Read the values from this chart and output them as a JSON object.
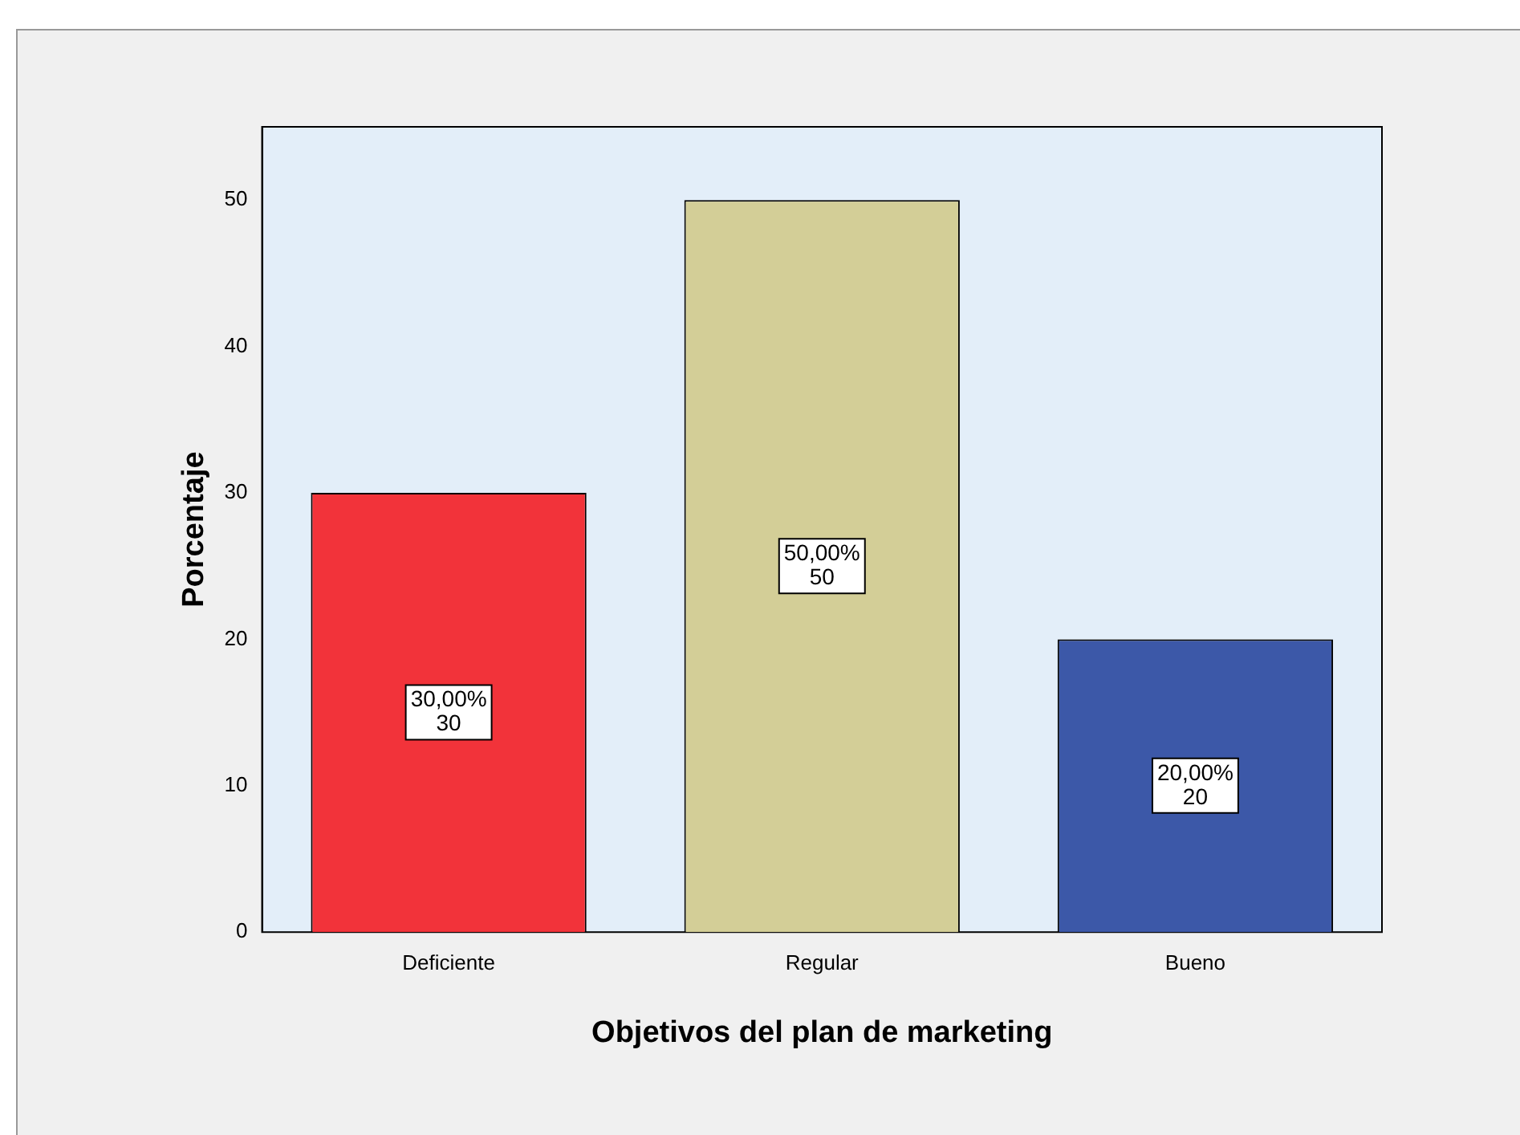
{
  "chart_data": {
    "type": "bar",
    "xlabel": "Objetivos del plan de marketing",
    "ylabel": "Porcentaje",
    "categories": [
      "Deficiente",
      "Regular",
      "Bueno"
    ],
    "values": [
      30,
      50,
      20
    ],
    "colors": [
      "#f2333a",
      "#d3ce97",
      "#3c58a8"
    ],
    "value_labels": [
      "30,00%\n30",
      "50,00%\n50",
      "20,00%\n20"
    ],
    "ylim": [
      0,
      55
    ],
    "yticks": [
      0,
      10,
      20,
      30,
      40,
      50
    ],
    "grid": false,
    "legend": false
  }
}
